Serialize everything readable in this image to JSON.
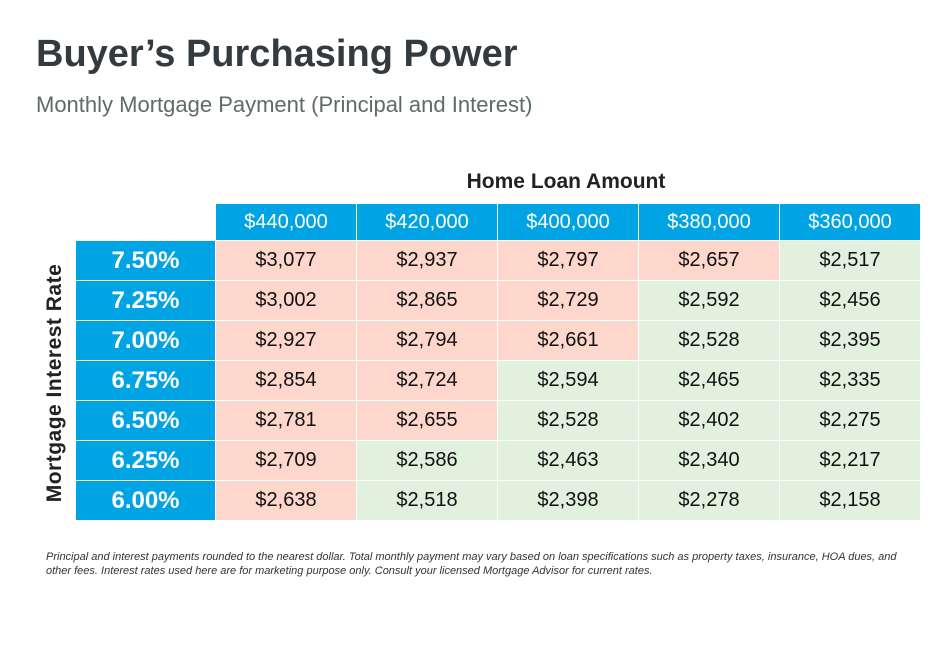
{
  "header": {
    "title": "Buyer’s Purchasing Power",
    "subtitle": "Monthly Mortgage Payment (Principal and Interest)"
  },
  "table": {
    "column_group_label": "Home Loan Amount",
    "row_group_label": "Mortgage  Interest Rate",
    "columns": [
      "$440,000",
      "$420,000",
      "$400,000",
      "$380,000",
      "$360,000"
    ],
    "rows": [
      {
        "rate": "7.50%",
        "cells": [
          "$3,077",
          "$2,937",
          "$2,797",
          "$2,657",
          "$2,517"
        ],
        "highlight": [
          "high",
          "high",
          "high",
          "high",
          "low"
        ]
      },
      {
        "rate": "7.25%",
        "cells": [
          "$3,002",
          "$2,865",
          "$2,729",
          "$2,592",
          "$2,456"
        ],
        "highlight": [
          "high",
          "high",
          "high",
          "low",
          "low"
        ]
      },
      {
        "rate": "7.00%",
        "cells": [
          "$2,927",
          "$2,794",
          "$2,661",
          "$2,528",
          "$2,395"
        ],
        "highlight": [
          "high",
          "high",
          "high",
          "low",
          "low"
        ]
      },
      {
        "rate": "6.75%",
        "cells": [
          "$2,854",
          "$2,724",
          "$2,594",
          "$2,465",
          "$2,335"
        ],
        "highlight": [
          "high",
          "high",
          "low",
          "low",
          "low"
        ]
      },
      {
        "rate": "6.50%",
        "cells": [
          "$2,781",
          "$2,655",
          "$2,528",
          "$2,402",
          "$2,275"
        ],
        "highlight": [
          "high",
          "high",
          "low",
          "low",
          "low"
        ]
      },
      {
        "rate": "6.25%",
        "cells": [
          "$2,709",
          "$2,586",
          "$2,463",
          "$2,340",
          "$2,217"
        ],
        "highlight": [
          "high",
          "low",
          "low",
          "low",
          "low"
        ]
      },
      {
        "rate": "6.00%",
        "cells": [
          "$2,638",
          "$2,518",
          "$2,398",
          "$2,278",
          "$2,158"
        ],
        "highlight": [
          "high",
          "low",
          "low",
          "low",
          "low"
        ]
      }
    ]
  },
  "footnote": "Principal and interest payments rounded to the nearest dollar. Total monthly payment may vary based on loan specifications such as property taxes, insurance, HOA dues, and other fees. Interest rates used here are for marketing purpose only. Consult your licensed Mortgage Advisor for current rates.",
  "colors": {
    "header_blue": "#00a4e4",
    "above_budget": "#fdd6cc",
    "within_budget": "#e1f1dd"
  }
}
